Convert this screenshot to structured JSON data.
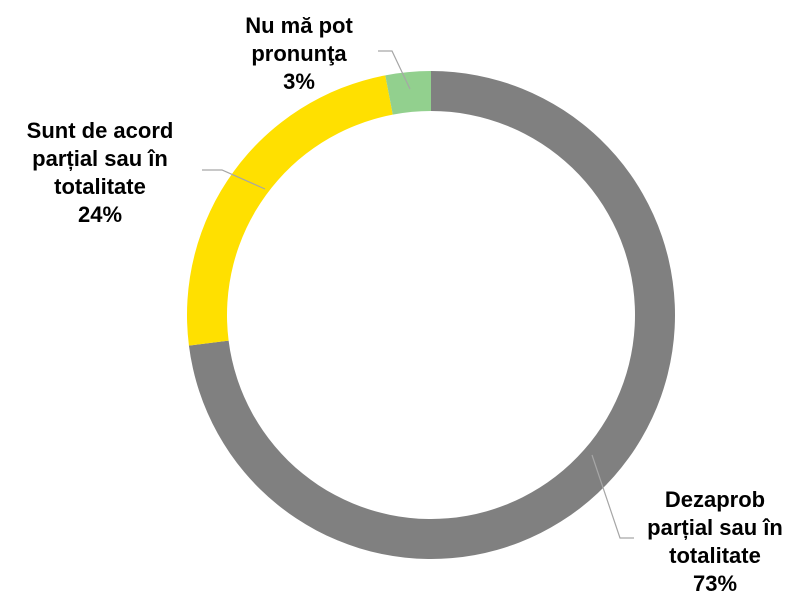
{
  "chart_data": {
    "type": "pie",
    "variant": "donut",
    "slices": [
      {
        "label_lines": [
          "Dezaprob",
          "parțial sau în",
          "totalitate"
        ],
        "value": 73,
        "value_label": "73%",
        "color": "#808080"
      },
      {
        "label_lines": [
          "Sunt de acord",
          "parțial sau în",
          "totalitate"
        ],
        "value": 24,
        "value_label": "24%",
        "color": "#FFE000"
      },
      {
        "label_lines": [
          "Nu mă pot",
          "pronunţa"
        ],
        "value": 3,
        "value_label": "3%",
        "color": "#92D08E"
      }
    ],
    "start_angle_deg": 0,
    "direction": "clockwise",
    "legend": "none"
  }
}
